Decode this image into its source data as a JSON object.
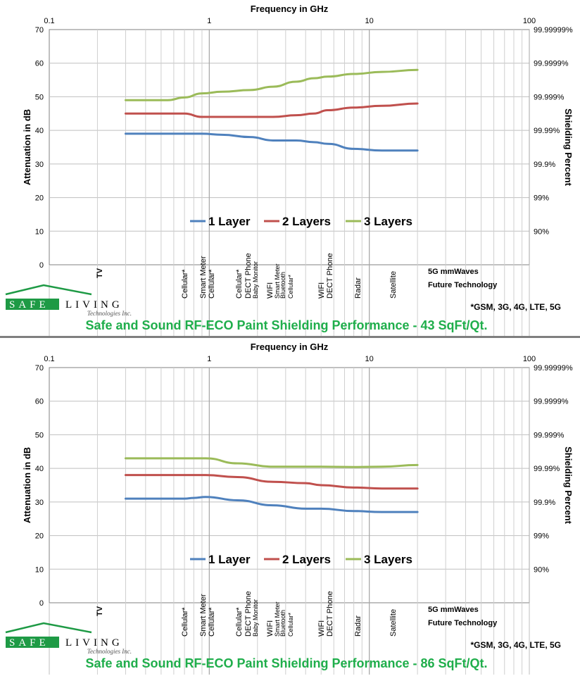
{
  "logo": {
    "left_text": "SAFE",
    "right_text": "LIVING",
    "subtitle": "Technologies Inc."
  },
  "chart_data": [
    {
      "type": "line",
      "title": "Safe and Sound RF-ECO Paint Shielding Performance - 43 SqFt/Qt.",
      "xlabel": "Frequency in GHz",
      "ylabel": "Attenuation in dB",
      "y2label": "Shielding Percent",
      "xscale": "log",
      "xlim": [
        0.1,
        100
      ],
      "ylim": [
        0,
        70
      ],
      "x_ticks": [
        "0.1",
        "1",
        "10",
        "100"
      ],
      "y_ticks": [
        "0",
        "10",
        "20",
        "30",
        "40",
        "50",
        "60",
        "70"
      ],
      "y2_ticks": [
        "90%",
        "99%",
        "99.9%",
        "99.99%",
        "99.999%",
        "99.9999%",
        "99.99999%"
      ],
      "legend_position": "center",
      "x": [
        0.3,
        0.4,
        0.55,
        0.7,
        0.9,
        1.2,
        1.8,
        2.5,
        3.5,
        4.5,
        5.5,
        8,
        12,
        20
      ],
      "series": [
        {
          "name": "1 Layer",
          "color": "#4f81bd",
          "values": [
            39,
            39,
            39,
            39,
            39,
            38.7,
            38,
            37,
            37,
            36.5,
            36,
            34.5,
            34,
            34
          ]
        },
        {
          "name": "2 Layers",
          "color": "#c0504d",
          "values": [
            45,
            45,
            45,
            45,
            44,
            44,
            44,
            44,
            44.5,
            45,
            46,
            46.8,
            47.3,
            48
          ]
        },
        {
          "name": "3 Layers",
          "color": "#9bbb59",
          "values": [
            49,
            49,
            49,
            49.8,
            51,
            51.5,
            52,
            53,
            54.5,
            55.5,
            56,
            56.8,
            57.4,
            58
          ]
        }
      ],
      "bands": {
        "bold": [
          "TV",
          "5G mmWaves",
          "Future Technology"
        ],
        "rotated": [
          "Cellular*",
          "Smart Meter",
          "Cellular*",
          "Cellular*",
          "DECT Phone",
          "Baby Monitor",
          "WIFI",
          "Smart Meter",
          "Bluetooth",
          "Cellular*",
          "WIFI",
          "DECT Phone",
          "Radar",
          "Satellite"
        ]
      },
      "footnote": "*GSM, 3G, 4G, LTE, 5G"
    },
    {
      "type": "line",
      "title": "Safe and Sound RF-ECO Paint Shielding Performance - 86 SqFt/Qt.",
      "xlabel": "Frequency in GHz",
      "ylabel": "Attenuation in dB",
      "y2label": "Shielding Percent",
      "xscale": "log",
      "xlim": [
        0.1,
        100
      ],
      "ylim": [
        0,
        70
      ],
      "x_ticks": [
        "0.1",
        "1",
        "10",
        "100"
      ],
      "y_ticks": [
        "0",
        "10",
        "20",
        "30",
        "40",
        "50",
        "60",
        "70"
      ],
      "y2_ticks": [
        "90%",
        "99%",
        "99.9%",
        "99.99%",
        "99.999%",
        "99.9999%",
        "99.99999%"
      ],
      "legend_position": "center",
      "x": [
        0.3,
        0.5,
        0.7,
        0.8,
        0.95,
        1.5,
        2.5,
        4,
        5,
        8,
        12,
        20
      ],
      "series": [
        {
          "name": "1 Layer",
          "color": "#4f81bd",
          "values": [
            31,
            31,
            31,
            31.2,
            31.5,
            30.5,
            29,
            28,
            28,
            27.3,
            27,
            27
          ]
        },
        {
          "name": "2 Layers",
          "color": "#c0504d",
          "values": [
            38,
            38,
            38,
            38,
            38,
            37.4,
            36,
            35.6,
            35,
            34.3,
            34,
            34
          ]
        },
        {
          "name": "3 Layers",
          "color": "#9bbb59",
          "values": [
            43,
            43,
            43,
            43,
            43,
            41.5,
            40.5,
            40.5,
            40.5,
            40.4,
            40.5,
            41
          ]
        }
      ],
      "bands": {
        "bold": [
          "TV",
          "5G mmWaves",
          "Future Technology"
        ],
        "rotated": [
          "Cellular*",
          "Smart Meter",
          "Cellular*",
          "Cellular*",
          "DECT Phone",
          "Baby Monitor",
          "WIFI",
          "Smart Meter",
          "Bluetooth",
          "Cellular*",
          "WIFI",
          "DECT Phone",
          "Radar",
          "Satellite"
        ]
      },
      "footnote": "*GSM, 3G, 4G, LTE, 5G"
    }
  ]
}
